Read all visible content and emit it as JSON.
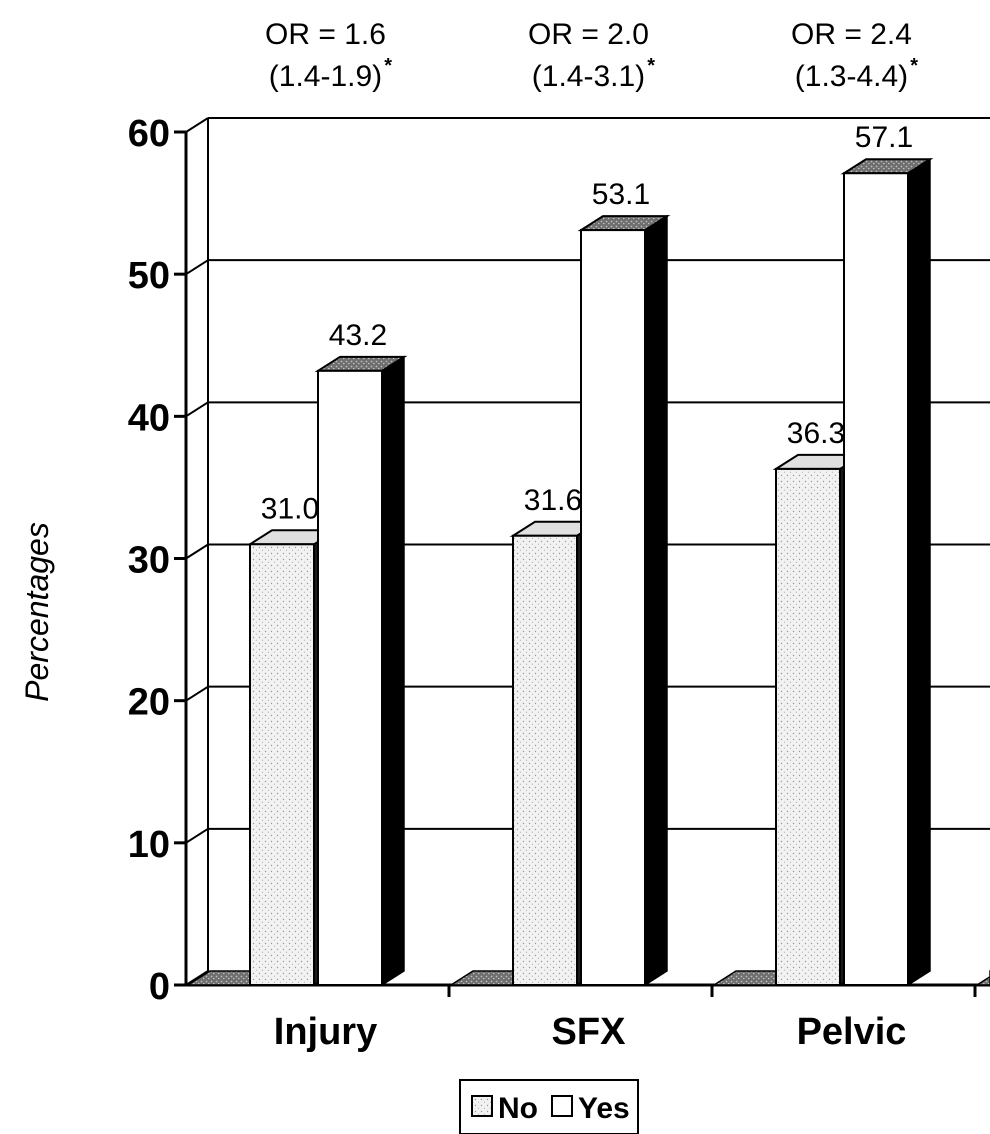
{
  "chart_data": {
    "type": "bar",
    "categories": [
      "Injury",
      "SFX",
      "Pelvic"
    ],
    "series": [
      {
        "name": "No",
        "values": [
          31.0,
          31.6,
          36.3
        ]
      },
      {
        "name": "Yes",
        "values": [
          43.2,
          53.1,
          57.1
        ]
      }
    ],
    "value_labels": {
      "No": [
        "31.0",
        "31.6",
        "36.3"
      ],
      "Yes": [
        "43.2",
        "53.1",
        "57.1"
      ]
    },
    "annotations": [
      {
        "line1": "OR = 1.6",
        "line2": "(1.4-1.9)",
        "marker": "*"
      },
      {
        "line1": "OR = 2.0",
        "line2": "(1.4-3.1)",
        "marker": "*"
      },
      {
        "line1": "OR = 2.4",
        "line2": "(1.3-4.4)",
        "marker": "*"
      }
    ],
    "title": "",
    "xlabel": "",
    "ylabel": "Percentages",
    "ylim": [
      0,
      60
    ],
    "yticks": [
      0,
      10,
      20,
      30,
      40,
      50,
      60
    ],
    "grid": true,
    "legend": "bottom",
    "style": "3d-bars",
    "colors": {
      "No": "#e6e6e6",
      "Yes": "#ffffff",
      "shadow": "#000000",
      "floor": "#8a8a8a"
    }
  }
}
